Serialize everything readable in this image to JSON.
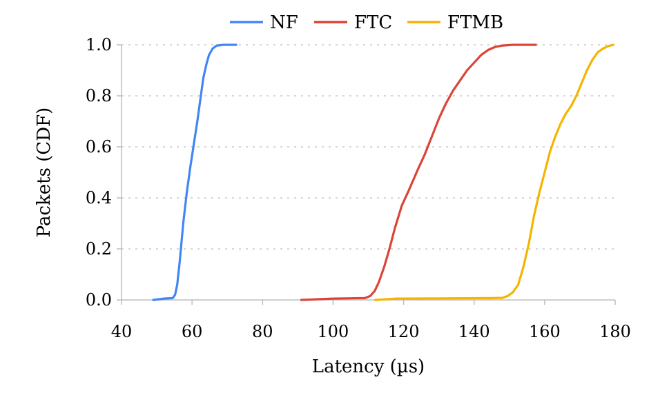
{
  "chart_data": {
    "type": "line",
    "xlabel": "Latency (µs)",
    "ylabel": "Packets (CDF)",
    "xlim": [
      40,
      180
    ],
    "ylim": [
      0,
      1
    ],
    "x_ticks": [
      "40",
      "60",
      "80",
      "100",
      "120",
      "140",
      "160",
      "180"
    ],
    "y_ticks": [
      "0.0",
      "0.2",
      "0.4",
      "0.6",
      "0.8",
      "1.0"
    ],
    "grid": "horizontal dotted",
    "legend_position": "top",
    "series": [
      {
        "name": "NF",
        "color": "#4285F4",
        "points": [
          [
            49,
            0
          ],
          [
            52,
            0.005
          ],
          [
            54.5,
            0.007
          ],
          [
            55.2,
            0.02
          ],
          [
            55.8,
            0.06
          ],
          [
            56.5,
            0.15
          ],
          [
            57.5,
            0.3
          ],
          [
            58.5,
            0.42
          ],
          [
            59.5,
            0.52
          ],
          [
            60.5,
            0.61
          ],
          [
            61.5,
            0.7
          ],
          [
            62.5,
            0.8
          ],
          [
            63.2,
            0.87
          ],
          [
            64,
            0.92
          ],
          [
            64.8,
            0.96
          ],
          [
            65.8,
            0.985
          ],
          [
            67,
            0.997
          ],
          [
            69,
            1
          ],
          [
            72.5,
            1
          ]
        ]
      },
      {
        "name": "FTC",
        "color": "#DB4437",
        "points": [
          [
            91,
            0
          ],
          [
            100,
            0.005
          ],
          [
            109,
            0.007
          ],
          [
            110.5,
            0.015
          ],
          [
            111.8,
            0.035
          ],
          [
            113,
            0.07
          ],
          [
            114.5,
            0.13
          ],
          [
            116,
            0.2
          ],
          [
            117.5,
            0.28
          ],
          [
            119.5,
            0.37
          ],
          [
            121.5,
            0.43
          ],
          [
            124,
            0.51
          ],
          [
            126,
            0.57
          ],
          [
            128,
            0.64
          ],
          [
            130,
            0.71
          ],
          [
            132,
            0.77
          ],
          [
            134,
            0.82
          ],
          [
            136,
            0.86
          ],
          [
            138,
            0.9
          ],
          [
            140,
            0.93
          ],
          [
            142,
            0.96
          ],
          [
            144,
            0.98
          ],
          [
            146,
            0.992
          ],
          [
            148,
            0.997
          ],
          [
            151,
            1
          ],
          [
            157.5,
            1
          ]
        ]
      },
      {
        "name": "FTMB",
        "color": "#F4B400",
        "points": [
          [
            112,
            0
          ],
          [
            118,
            0.005
          ],
          [
            130,
            0.006
          ],
          [
            145,
            0.007
          ],
          [
            148,
            0.008
          ],
          [
            149.5,
            0.015
          ],
          [
            151,
            0.03
          ],
          [
            152.5,
            0.06
          ],
          [
            154,
            0.13
          ],
          [
            155.5,
            0.22
          ],
          [
            157,
            0.33
          ],
          [
            158.5,
            0.42
          ],
          [
            160,
            0.5
          ],
          [
            161.5,
            0.58
          ],
          [
            163,
            0.64
          ],
          [
            164.5,
            0.69
          ],
          [
            166,
            0.73
          ],
          [
            167.5,
            0.76
          ],
          [
            169,
            0.8
          ],
          [
            170.5,
            0.85
          ],
          [
            172,
            0.9
          ],
          [
            173.5,
            0.94
          ],
          [
            175,
            0.97
          ],
          [
            176.5,
            0.985
          ],
          [
            178,
            0.995
          ],
          [
            179.5,
            1
          ]
        ]
      }
    ]
  }
}
